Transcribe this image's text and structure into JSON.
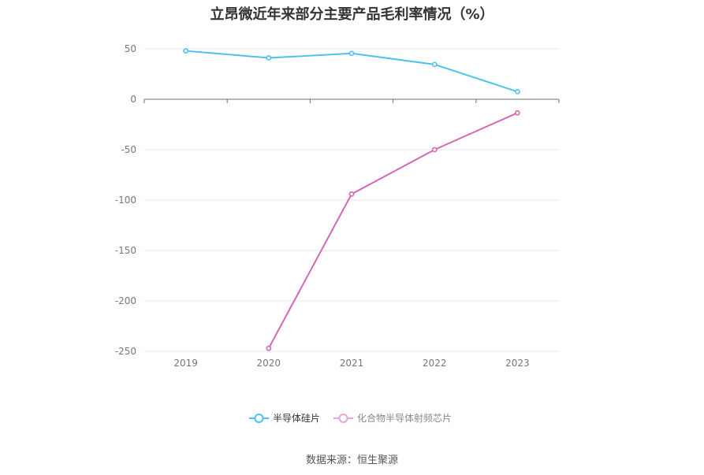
{
  "chart_data": {
    "type": "line",
    "title": "立昂微近年来部分主要产品毛利率情况（%）",
    "x": [
      "2019",
      "2020",
      "2021",
      "2022",
      "2023"
    ],
    "yticks": [
      50,
      0,
      -50,
      -100,
      -150,
      -200,
      -250
    ],
    "ylim": [
      -250,
      50
    ],
    "grid": true,
    "legend_position": "bottom",
    "series": [
      {
        "name": "半导体硅片",
        "color": "#4fc0ef",
        "values": [
          48,
          41,
          45.5,
          34.5,
          7.5
        ]
      },
      {
        "name": "化合物半导体射频芯片",
        "color": "#d466b4",
        "values": [
          null,
          -247,
          -94,
          -50,
          -13.5
        ]
      }
    ]
  },
  "source": "数据来源：恒生聚源"
}
